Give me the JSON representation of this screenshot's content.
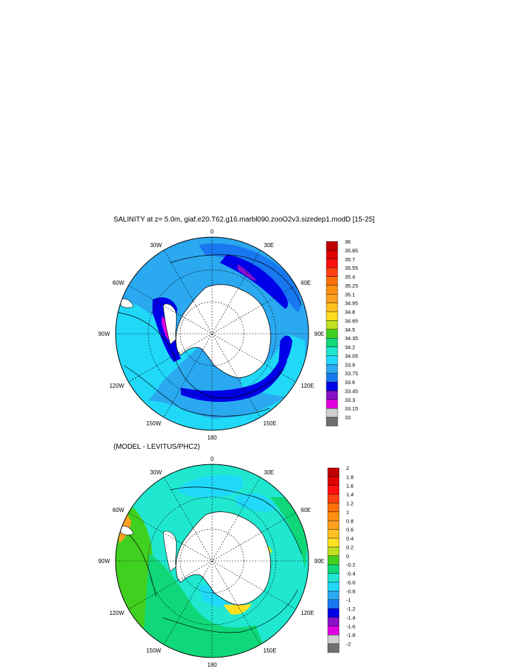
{
  "top_title": "SALINITY at z=   5.0m, giaf.e20.T62.g16.marbl090.zooO2v3.sizedep1.modD [15-25]",
  "diff_title": "(MODEL - LEVITUS/PHC2)",
  "colors": {
    "land": "#ffffff",
    "salinity_scale": [
      "#707070",
      "#cfcfcf",
      "#e000e0",
      "#8a10c8",
      "#0000e8",
      "#1878f0",
      "#2aa8f0",
      "#20d8f8",
      "#20e8d0",
      "#10d878",
      "#40d020",
      "#c0e020",
      "#ffe020",
      "#ffc020",
      "#ffa020",
      "#ff9010",
      "#ff7008",
      "#ff4010",
      "#ff1010",
      "#e00000",
      "#c00000"
    ],
    "anomaly_scale": [
      "#707070",
      "#cfcfcf",
      "#e000e0",
      "#8a10c8",
      "#0000e8",
      "#1878f0",
      "#2aa8f0",
      "#20d8f8",
      "#20e8d0",
      "#10d878",
      "#40d020",
      "#c0e020",
      "#ffe020",
      "#ffc020",
      "#ffa020",
      "#ff9010",
      "#ff7008",
      "#ff4010",
      "#ff1010",
      "#e00000",
      "#c00000"
    ]
  },
  "chart_data": [
    {
      "type": "heatmap",
      "title": "SALINITY at z=   5.0m, giaf.e20.T62.g16.marbl090.zooO2v3.sizedep1.modD [15-25]",
      "projection": "south polar stereographic",
      "lon_labels": [
        "0",
        "30E",
        "60E",
        "90E",
        "120E",
        "150E",
        "180",
        "150W",
        "120W",
        "90W",
        "60W",
        "30W"
      ],
      "colorbar_levels": [
        "36",
        "35.85",
        "35.7",
        "35.55",
        "35.4",
        "35.25",
        "35.1",
        "34.95",
        "34.8",
        "34.65",
        "34.5",
        "34.35",
        "34.2",
        "34.05",
        "33.9",
        "33.75",
        "33.6",
        "33.45",
        "33.3",
        "33.15",
        "33"
      ],
      "range": [
        33,
        36
      ]
    },
    {
      "type": "heatmap",
      "title": "(MODEL - LEVITUS/PHC2)",
      "projection": "south polar stereographic",
      "lon_labels": [
        "0",
        "30E",
        "60E",
        "90E",
        "120E",
        "150E",
        "180",
        "150W",
        "120W",
        "90W",
        "60W",
        "30W"
      ],
      "colorbar_levels": [
        "2",
        "1.8",
        "1.6",
        "1.4",
        "1.2",
        "1",
        "0.8",
        "0.6",
        "0.4",
        "0.2",
        "0",
        "-0.2",
        "-0.4",
        "-0.6",
        "-0.8",
        "-1",
        "-1.2",
        "-1.4",
        "-1.6",
        "-1.8",
        "-2"
      ],
      "range": [
        -2,
        2
      ]
    }
  ]
}
